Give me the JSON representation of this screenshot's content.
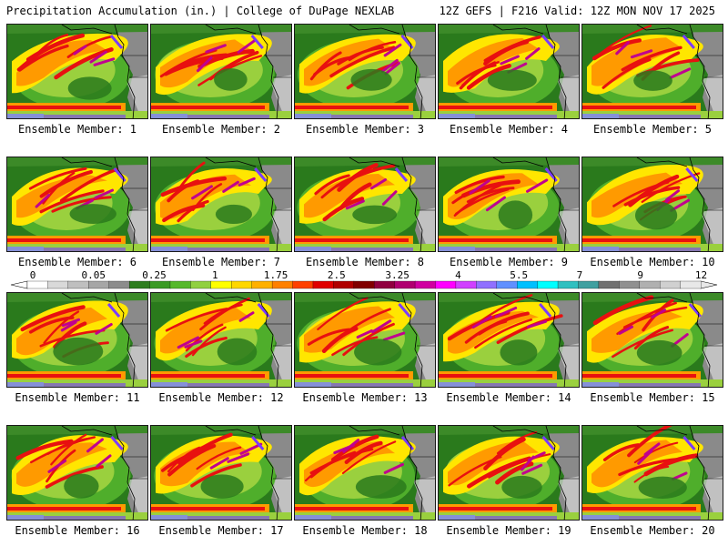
{
  "header": {
    "left": "Precipitation Accumulation (in.) | College of DuPage NEXLAB",
    "right": "12Z GEFS | F216 Valid: 12Z MON NOV 17 2025"
  },
  "panels": [
    {
      "member": 1,
      "label": "Ensemble Member: 1"
    },
    {
      "member": 2,
      "label": "Ensemble Member: 2"
    },
    {
      "member": 3,
      "label": "Ensemble Member: 3"
    },
    {
      "member": 4,
      "label": "Ensemble Member: 4"
    },
    {
      "member": 5,
      "label": "Ensemble Member: 5"
    },
    {
      "member": 6,
      "label": "Ensemble Member: 6"
    },
    {
      "member": 7,
      "label": "Ensemble Member: 7"
    },
    {
      "member": 8,
      "label": "Ensemble Member: 8"
    },
    {
      "member": 9,
      "label": "Ensemble Member: 9"
    },
    {
      "member": 10,
      "label": "Ensemble Member: 10"
    },
    {
      "member": 11,
      "label": "Ensemble Member: 11"
    },
    {
      "member": 12,
      "label": "Ensemble Member: 12"
    },
    {
      "member": 13,
      "label": "Ensemble Member: 13"
    },
    {
      "member": 14,
      "label": "Ensemble Member: 14"
    },
    {
      "member": 15,
      "label": "Ensemble Member: 15"
    },
    {
      "member": 16,
      "label": "Ensemble Member: 16"
    },
    {
      "member": 17,
      "label": "Ensemble Member: 17"
    },
    {
      "member": 18,
      "label": "Ensemble Member: 18"
    },
    {
      "member": 19,
      "label": "Ensemble Member: 19"
    },
    {
      "member": 20,
      "label": "Ensemble Member: 20"
    }
  ],
  "colorbar": {
    "ticks": [
      "0",
      "0.05",
      "0.25",
      "1",
      "1.75",
      "2.5",
      "3.25",
      "4",
      "5.5",
      "7",
      "9",
      "12"
    ],
    "colors": [
      "#ffffff",
      "#d9d9d9",
      "#bfbfbf",
      "#a6a6a6",
      "#8c8c8c",
      "#2e7d1f",
      "#3a9a25",
      "#55b82c",
      "#90d040",
      "#ffff00",
      "#ffd700",
      "#ffb000",
      "#ff8000",
      "#ff4000",
      "#e00000",
      "#b00000",
      "#800000",
      "#900040",
      "#b00070",
      "#d000a0",
      "#ff00ff",
      "#d040ff",
      "#9070ff",
      "#6090ff",
      "#00c0ff",
      "#00ffff",
      "#30c0c0",
      "#40a0a0",
      "#707070",
      "#909090",
      "#b0b0b0",
      "#d0d0d0",
      "#e8e8e8"
    ]
  },
  "map_colors": {
    "dry": "#2a7a1c",
    "light": "#4fae2b",
    "green_yellow": "#9ad03e",
    "yellow": "#ffe600",
    "orange": "#ff9a00",
    "red": "#e81010",
    "magenta": "#c00090",
    "purple": "#7a3cff",
    "land_gray": "#8a8a8a",
    "snow": "#d8d8d8"
  }
}
